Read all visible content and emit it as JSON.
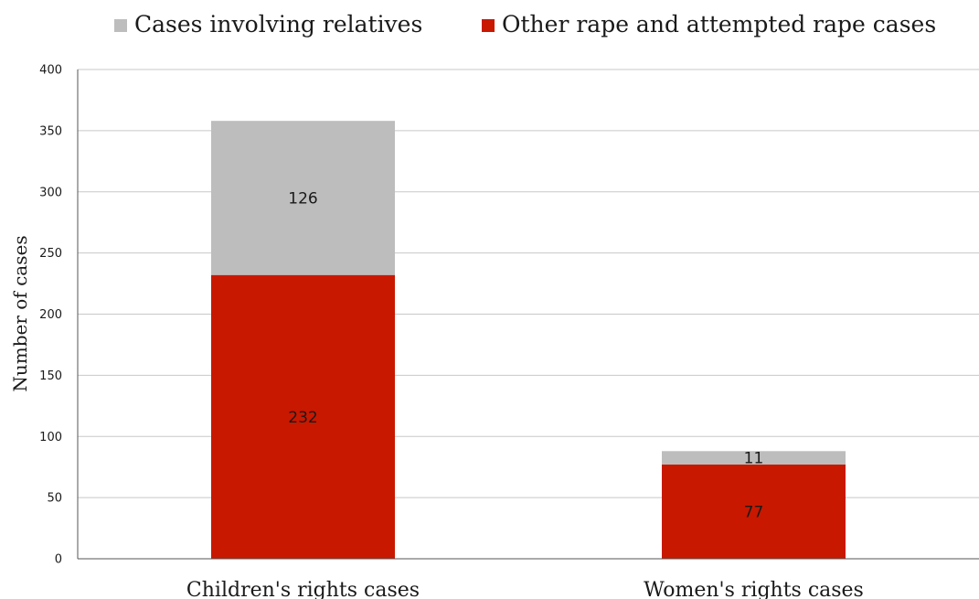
{
  "chart_data": {
    "type": "bar",
    "stacked": true,
    "categories": [
      "Children's rights cases",
      "Women's rights cases"
    ],
    "series": [
      {
        "name": "Other rape and attempted rape cases",
        "values": [
          232,
          77
        ],
        "color": "#c81800"
      },
      {
        "name": "Cases involving relatives",
        "values": [
          126,
          11
        ],
        "color": "#bdbdbd"
      }
    ],
    "legend_order": [
      1,
      0
    ],
    "legend_position": "top",
    "ylabel": "Number of cases",
    "ylim": [
      0,
      400
    ],
    "yticks": [
      0,
      50,
      100,
      150,
      200,
      250,
      300,
      350,
      400
    ],
    "grid": true,
    "data_labels": true
  }
}
